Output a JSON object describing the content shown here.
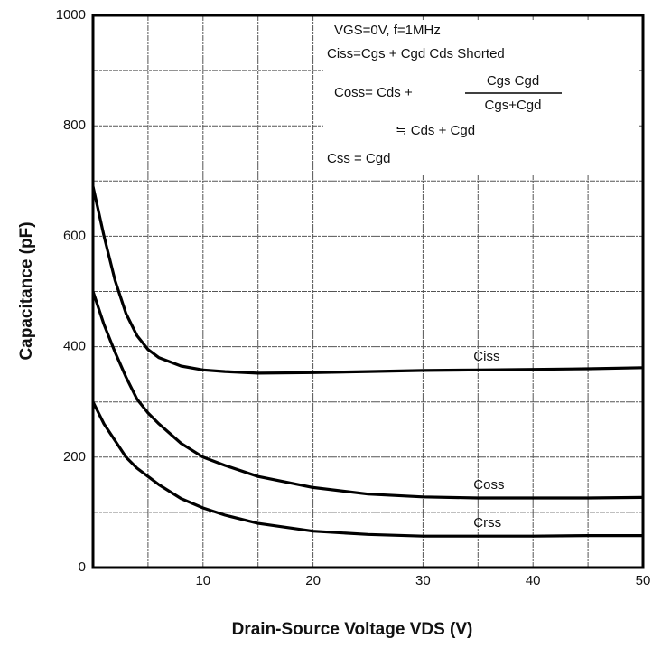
{
  "chart_data": {
    "type": "line",
    "xlabel": "Drain-Source Voltage VDS (V)",
    "ylabel": "Capacitance (pF)",
    "x": [
      0,
      1,
      2,
      3,
      4,
      5,
      6,
      8,
      10,
      12,
      15,
      20,
      25,
      30,
      35,
      40,
      45,
      50
    ],
    "series": [
      {
        "name": "Ciss",
        "color": "#000000",
        "values": [
          690,
          600,
          520,
          460,
          420,
          395,
          380,
          365,
          358,
          355,
          352,
          353,
          355,
          357,
          358,
          359,
          360,
          362
        ]
      },
      {
        "name": "Coss",
        "color": "#000000",
        "values": [
          500,
          440,
          390,
          345,
          305,
          280,
          260,
          225,
          200,
          185,
          165,
          145,
          133,
          128,
          126,
          126,
          126,
          127
        ]
      },
      {
        "name": "Crss",
        "color": "#000000",
        "values": [
          300,
          260,
          230,
          200,
          180,
          165,
          150,
          125,
          108,
          95,
          80,
          66,
          60,
          57,
          57,
          57,
          58,
          58
        ]
      }
    ],
    "annotations": [
      "VGS=0V, f=1MHz",
      "Ciss=Cgs + Cgd Cds Shorted",
      "Coss= Cds +",
      "Cgs Cgd",
      "Cgs+Cgd",
      "≒ Cds + Cgd",
      "Css = Cgd"
    ],
    "xlim": [
      0,
      50
    ],
    "xticks": [
      10,
      20,
      30,
      40,
      50
    ],
    "x_minor_ticks": [
      5,
      15,
      25,
      35,
      45
    ],
    "ylim": [
      0,
      1000
    ],
    "yticks": [
      0,
      200,
      400,
      600,
      800,
      1000
    ],
    "y_minor_ticks": [
      100,
      300,
      500,
      700,
      900
    ],
    "grid": true
  }
}
